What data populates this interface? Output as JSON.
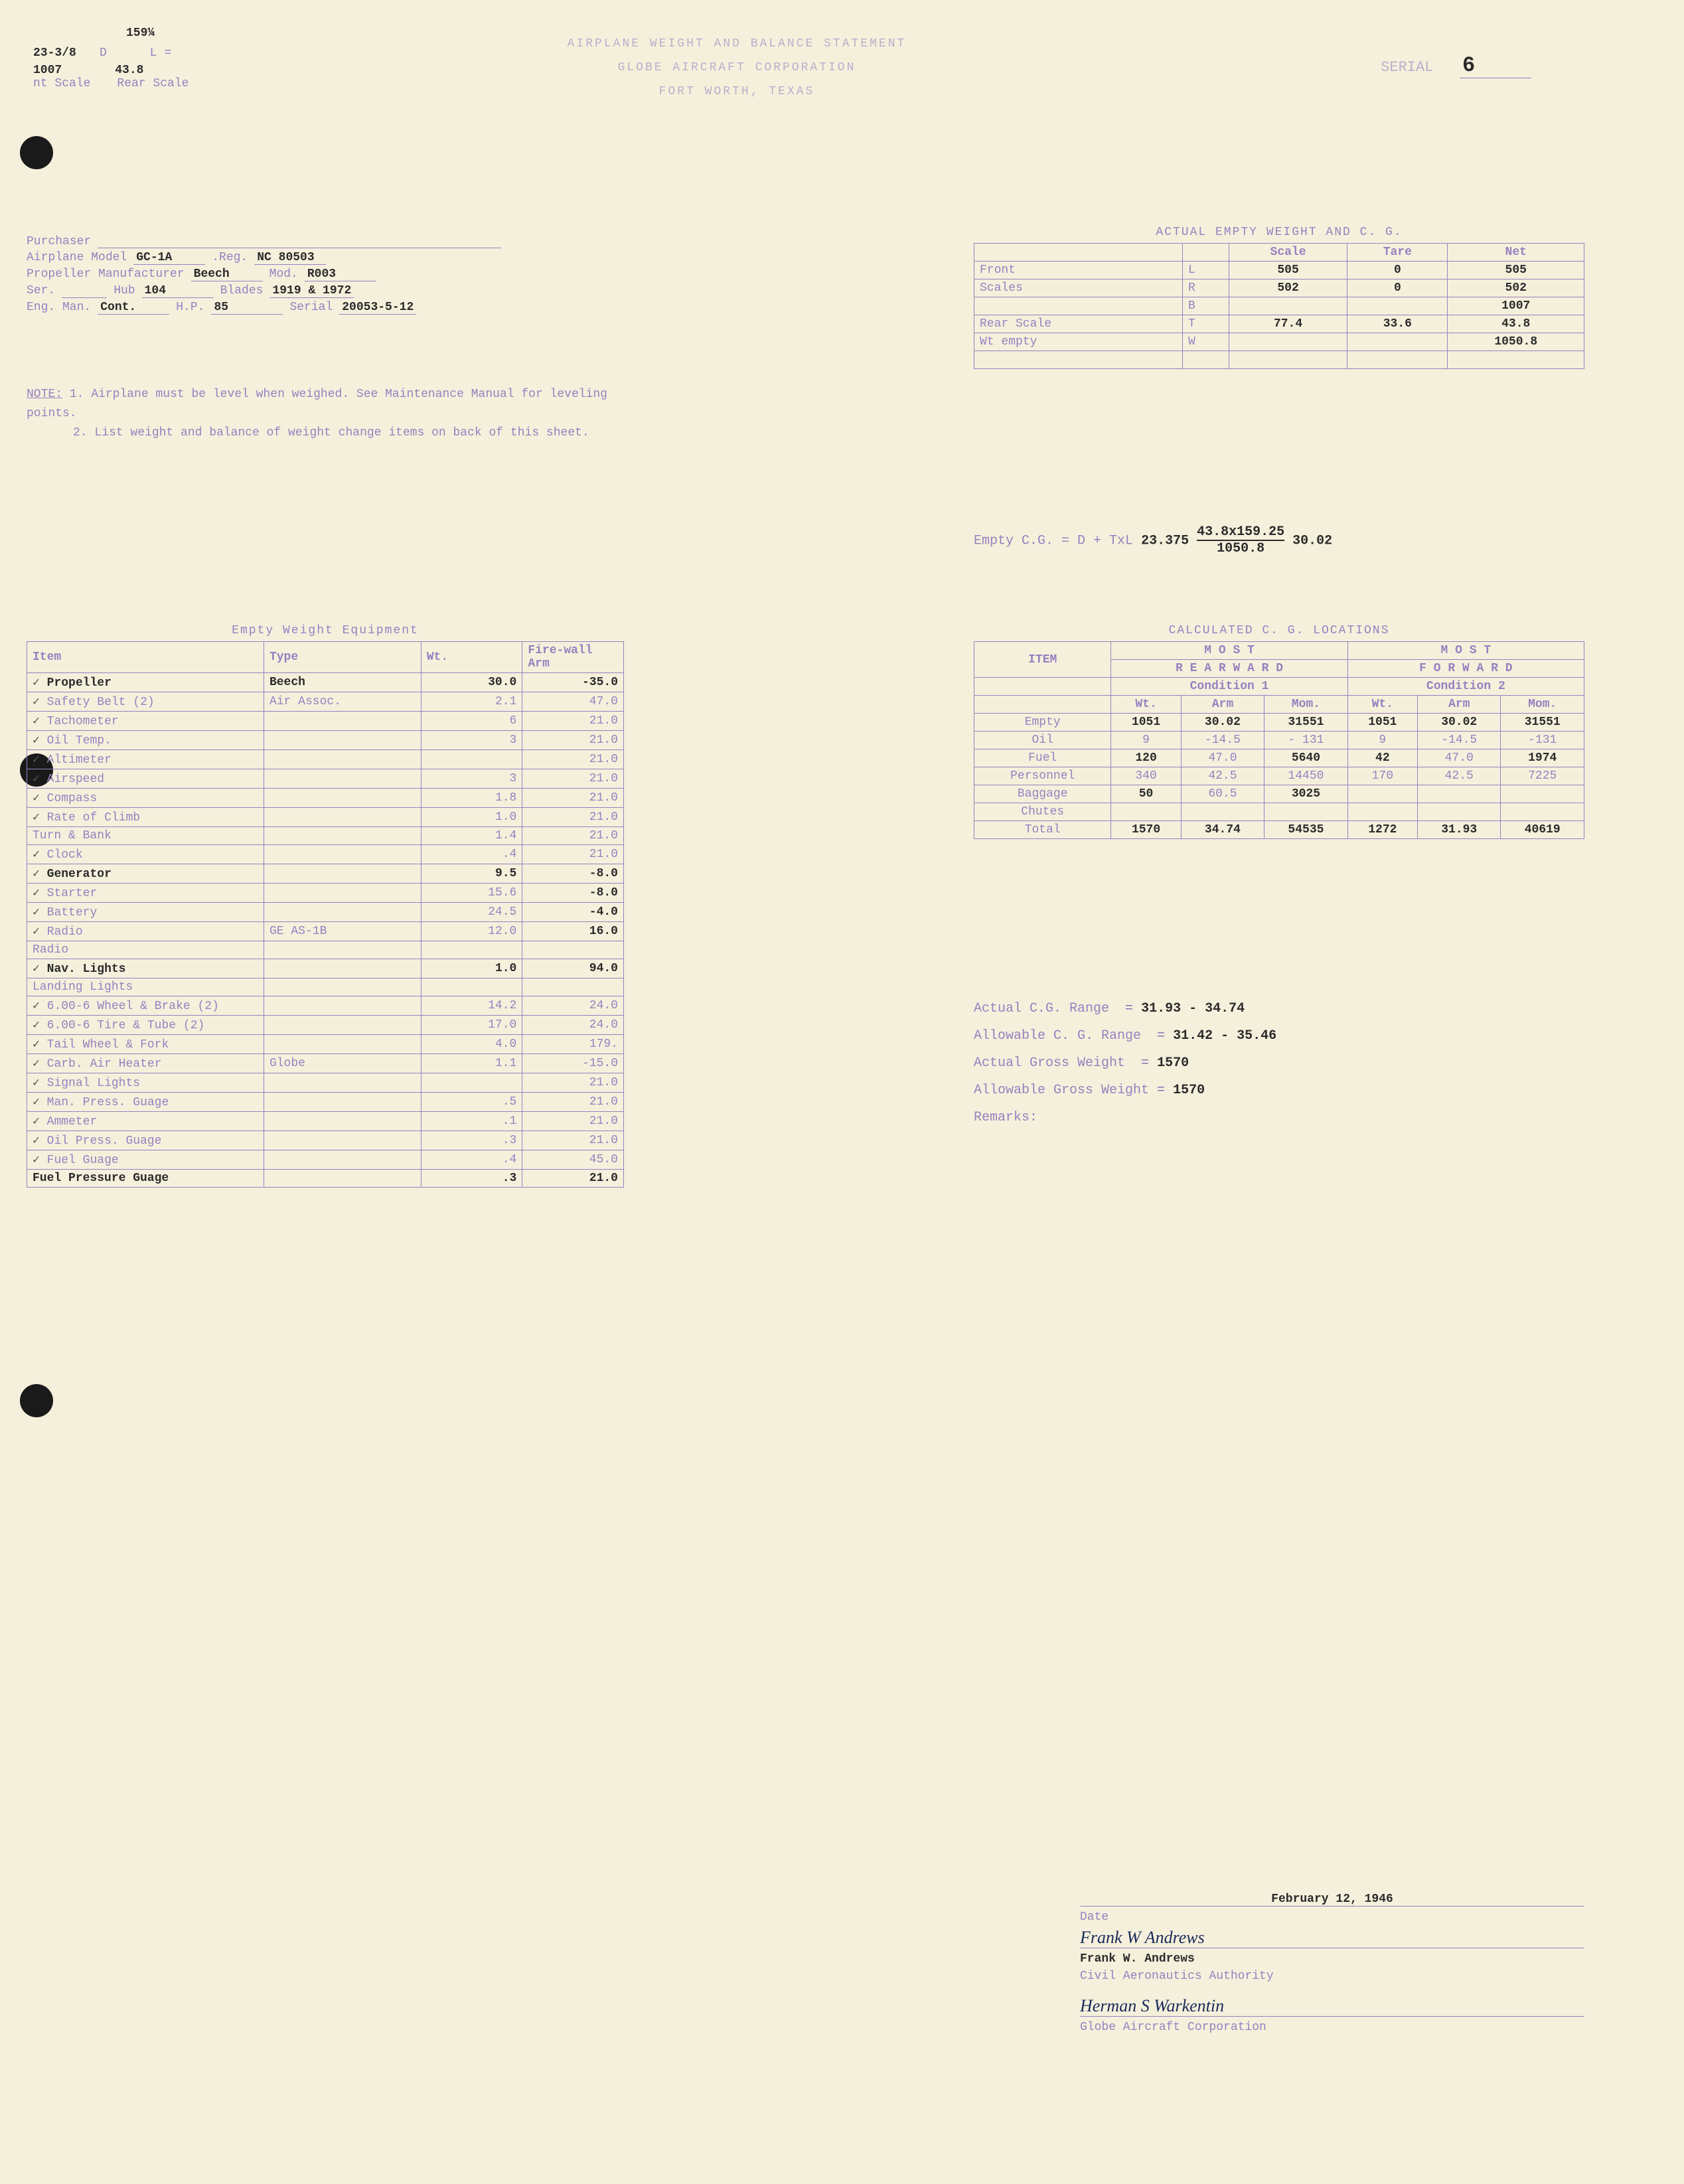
{
  "header": {
    "top_dim": "159¼",
    "side_label": "23-3/8",
    "front_scale": "1007",
    "rear_scale": "43.8",
    "front_scale_label": "nt Scale",
    "rear_scale_label": "Rear Scale",
    "title1": "AIRPLANE WEIGHT AND BALANCE STATEMENT",
    "title2": "GLOBE AIRCRAFT CORPORATION",
    "title3": "FORT WORTH, TEXAS",
    "serial_label": "SERIAL",
    "serial": "6",
    "d_label": "D",
    "l_label": "L ="
  },
  "info": {
    "purchaser_label": "Purchaser",
    "model_label": "Airplane Model",
    "model": "GC-1A",
    "reg_label": ".Reg.",
    "reg": "NC 80503",
    "prop_label": "Propeller Manufacturer",
    "prop": "Beech",
    "prop_mod_label": "Mod.",
    "prop_mod": "R003",
    "ser_label": "Ser.",
    "hub_label": "Hub",
    "hub": "104",
    "blades_label": "Blades",
    "blades": "1919 & 1972",
    "eng_label": "Eng. Man.",
    "eng": "Cont.",
    "hp_label": "H.P.",
    "hp": "85",
    "eng_serial_label": "Serial",
    "eng_serial": "20053-5-12"
  },
  "notes": {
    "label": "NOTE:",
    "n1": "1.  Airplane must be level when weighed. See Maintenance Manual for leveling points.",
    "n2": "2.  List weight and balance of weight change items on back of this sheet."
  },
  "weight": {
    "title": "ACTUAL EMPTY WEIGHT AND C. G.",
    "h_scale": "Scale",
    "h_tare": "Tare",
    "h_net": "Net",
    "r1_label": "Front",
    "r1_sub": "L",
    "r1_scale": "505",
    "r1_tare": "0",
    "r1_net": "505",
    "r2_label": "Scales",
    "r2_sub": "R",
    "r2_scale": "502",
    "r2_tare": "0",
    "r2_net": "502",
    "r3_sub": "B",
    "r3_net": "1007",
    "r4_label": "Rear Scale",
    "r4_sub": "T",
    "r4_scale": "77.4",
    "r4_tare": "33.6",
    "r4_net": "43.8",
    "r5_label": "Wt empty",
    "r5_sub": "W",
    "r5_net": "1050.8"
  },
  "cgcalc": {
    "label": "Empty C.G. = D + TxL",
    "d": "23.375",
    "frac_top": "43.8x159.25",
    "frac_bot": "1050.8",
    "result": "30.02"
  },
  "equip_title": "Empty Weight Equipment",
  "equip_headers": {
    "item": "Item",
    "type": "Type",
    "wt": "Wt.",
    "arm": "Fire-wall Arm"
  },
  "equip": [
    {
      "c": "✓",
      "item": "Propeller",
      "type": "Beech",
      "wt": "30.0",
      "arm": "-35.0",
      "bold": true
    },
    {
      "c": "✓",
      "item": "Safety Belt (2)",
      "type": "Air Assoc.",
      "wt": "2.1",
      "arm": "47.0"
    },
    {
      "c": "✓",
      "item": "Tachometer",
      "type": "",
      "wt": "6",
      "arm": "21.0"
    },
    {
      "c": "✓",
      "item": "Oil Temp.",
      "type": "",
      "wt": "3",
      "arm": "21.0"
    },
    {
      "c": "✓",
      "item": "Altimeter",
      "type": "",
      "wt": "",
      "arm": "21.0"
    },
    {
      "c": "✓",
      "item": "Airspeed",
      "type": "",
      "wt": "3",
      "arm": "21.0"
    },
    {
      "c": "✓",
      "item": "Compass",
      "type": "",
      "wt": "1.8",
      "arm": "21.0"
    },
    {
      "c": "✓",
      "item": "Rate of Climb",
      "type": "",
      "wt": "1.0",
      "arm": "21.0"
    },
    {
      "c": "",
      "item": "Turn & Bank",
      "type": "",
      "wt": "1.4",
      "arm": "21.0"
    },
    {
      "c": "✓",
      "item": "Clock",
      "type": "",
      "wt": ".4",
      "arm": "21.0"
    },
    {
      "c": "✓",
      "item": "Generator",
      "type": "",
      "wt": "9.5",
      "arm": "-8.0",
      "bold": true
    },
    {
      "c": "✓",
      "item": "Starter",
      "type": "",
      "wt": "15.6",
      "arm": "-8.0",
      "armBold": true
    },
    {
      "c": "✓",
      "item": "Battery",
      "type": "",
      "wt": "24.5",
      "arm": "-4.0",
      "armBold": true
    },
    {
      "c": "✓",
      "item": "Radio",
      "type": "GE AS-1B",
      "wt": "12.0",
      "arm": "16.0",
      "armBold": true
    },
    {
      "c": "",
      "item": "Radio",
      "type": "",
      "wt": "",
      "arm": ""
    },
    {
      "c": "✓",
      "item": "Nav. Lights",
      "type": "",
      "wt": "1.0",
      "arm": "94.0",
      "bold": true
    },
    {
      "c": "",
      "item": "Landing Lights",
      "type": "",
      "wt": "",
      "arm": ""
    },
    {
      "c": "✓",
      "item": "6.00-6 Wheel & Brake (2)",
      "type": "",
      "wt": "14.2",
      "arm": "24.0"
    },
    {
      "c": "✓",
      "item": "6.00-6 Tire & Tube (2)",
      "type": "",
      "wt": "17.0",
      "arm": "24.0"
    },
    {
      "c": "✓",
      "item": "Tail Wheel & Fork",
      "type": "",
      "wt": "4.0",
      "arm": "179."
    },
    {
      "c": "✓",
      "item": "Carb. Air Heater",
      "type": "Globe",
      "wt": "1.1",
      "arm": "-15.0"
    },
    {
      "c": "✓",
      "item": "Signal Lights",
      "type": "",
      "wt": "",
      "arm": "21.0"
    },
    {
      "c": "✓",
      "item": "Man. Press. Guage",
      "type": "",
      "wt": ".5",
      "arm": "21.0"
    },
    {
      "c": "✓",
      "item": "Ammeter",
      "type": "",
      "wt": ".1",
      "arm": "21.0"
    },
    {
      "c": "✓",
      "item": "Oil Press. Guage",
      "type": "",
      "wt": ".3",
      "arm": "21.0"
    },
    {
      "c": "✓",
      "item": "Fuel Guage",
      "type": "",
      "wt": ".4",
      "arm": "45.0"
    },
    {
      "c": "",
      "item": "Fuel Pressure Guage",
      "type": "",
      "wt": ".3",
      "arm": "21.0",
      "bold": true
    }
  ],
  "cgloc": {
    "title": "CALCULATED C. G. LOCATIONS",
    "most": "M O S T",
    "rear": "R E A R W A R D",
    "fwd": "F O R W A R D",
    "cond1": "Condition 1",
    "cond2": "Condition 2",
    "h_item": "ITEM",
    "h_wt": "Wt.",
    "h_arm": "Arm",
    "h_mom": "Mom.",
    "rows": [
      {
        "item": "Empty",
        "w1": "1051",
        "a1": "30.02",
        "m1": "31551",
        "w2": "1051",
        "a2": "30.02",
        "m2": "31551",
        "bold": true
      },
      {
        "item": "Oil",
        "w1": "9",
        "a1": "-14.5",
        "m1": "- 131",
        "w2": "9",
        "a2": "-14.5",
        "m2": "-131"
      },
      {
        "item": "Fuel",
        "w1": "120",
        "a1": "47.0",
        "m1": "5640",
        "w2": "42",
        "a2": "47.0",
        "m2": "1974",
        "w1bold": true,
        "m1bold": true,
        "w2bold": true,
        "m2bold": true
      },
      {
        "item": "Personnel",
        "w1": "340",
        "a1": "42.5",
        "m1": "14450",
        "w2": "170",
        "a2": "42.5",
        "m2": "7225"
      },
      {
        "item": "Baggage",
        "w1": "50",
        "a1": "60.5",
        "m1": "3025",
        "w2": "",
        "a2": "",
        "m2": "",
        "w1bold": true,
        "m1bold": true
      },
      {
        "item": "Chutes",
        "w1": "",
        "a1": "",
        "m1": "",
        "w2": "",
        "a2": "",
        "m2": ""
      },
      {
        "item": "Total",
        "w1": "1570",
        "a1": "34.74",
        "m1": "54535",
        "w2": "1272",
        "a2": "31.93",
        "m2": "40619",
        "bold": true
      }
    ]
  },
  "results": {
    "r1_label": "Actual C.G. Range",
    "r1": "31.93 - 34.74",
    "r2_label": "Allowable C. G. Range",
    "r2": "31.42 - 35.46",
    "r3_label": "Actual Gross Weight",
    "r3": "1570",
    "r4_label": "Allowable Gross Weight",
    "r4": "1570",
    "remarks": "Remarks:"
  },
  "sig": {
    "date": "February 12, 1946",
    "date_label": "Date",
    "sig1": "Frank W Andrews",
    "name1": "Frank W. Andrews",
    "org1": "Civil Aeronautics Authority",
    "sig2": "Herman S Warkentin",
    "org2": "Globe Aircraft Corporation"
  }
}
